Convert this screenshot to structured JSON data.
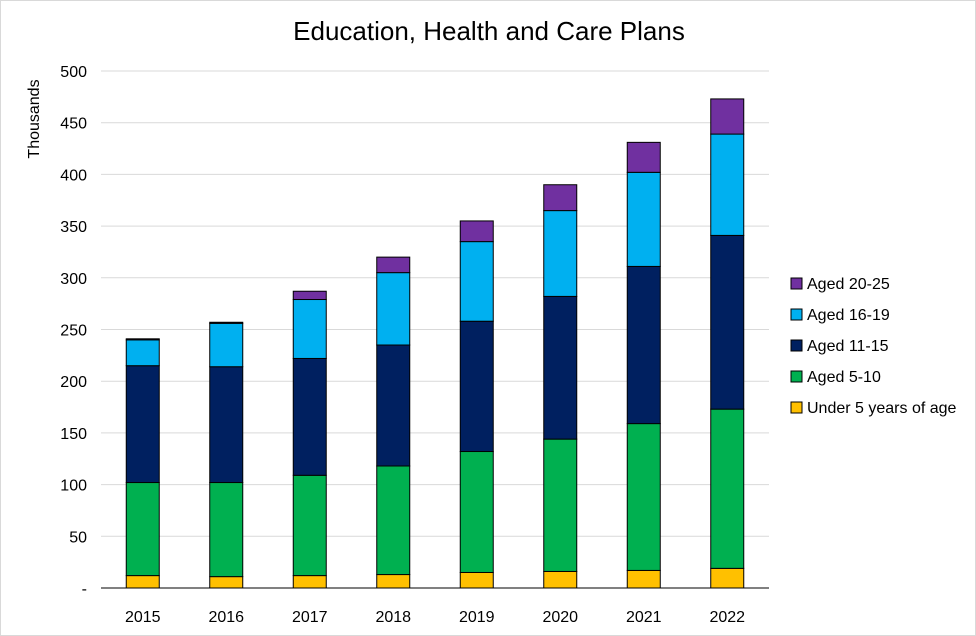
{
  "chart_data": {
    "type": "bar",
    "stacked": true,
    "title": "Education, Health and Care Plans",
    "xlabel": "",
    "ylabel": "Thousands",
    "ylim": [
      0,
      500
    ],
    "yticks": [
      "-",
      "50",
      "100",
      "150",
      "200",
      "250",
      "300",
      "350",
      "400",
      "450",
      "500"
    ],
    "grid": true,
    "legend_position": "right",
    "categories": [
      "2015",
      "2016",
      "2017",
      "2018",
      "2019",
      "2020",
      "2021",
      "2022"
    ],
    "series": [
      {
        "name": "Under 5 years of age",
        "color": "#FFC000",
        "values": [
          12,
          11,
          12,
          13,
          15,
          16,
          17,
          19
        ]
      },
      {
        "name": "Aged 5-10",
        "color": "#00B050",
        "values": [
          90,
          91,
          97,
          105,
          117,
          128,
          142,
          154
        ]
      },
      {
        "name": "Aged 11-15",
        "color": "#002060",
        "values": [
          113,
          112,
          113,
          117,
          126,
          138,
          152,
          168
        ]
      },
      {
        "name": "Aged 16-19",
        "color": "#00B0F0",
        "values": [
          25,
          42,
          57,
          70,
          77,
          83,
          91,
          98
        ]
      },
      {
        "name": "Aged 20-25",
        "color": "#7030A0",
        "values": [
          1,
          1,
          8,
          15,
          20,
          25,
          29,
          34
        ]
      }
    ]
  }
}
